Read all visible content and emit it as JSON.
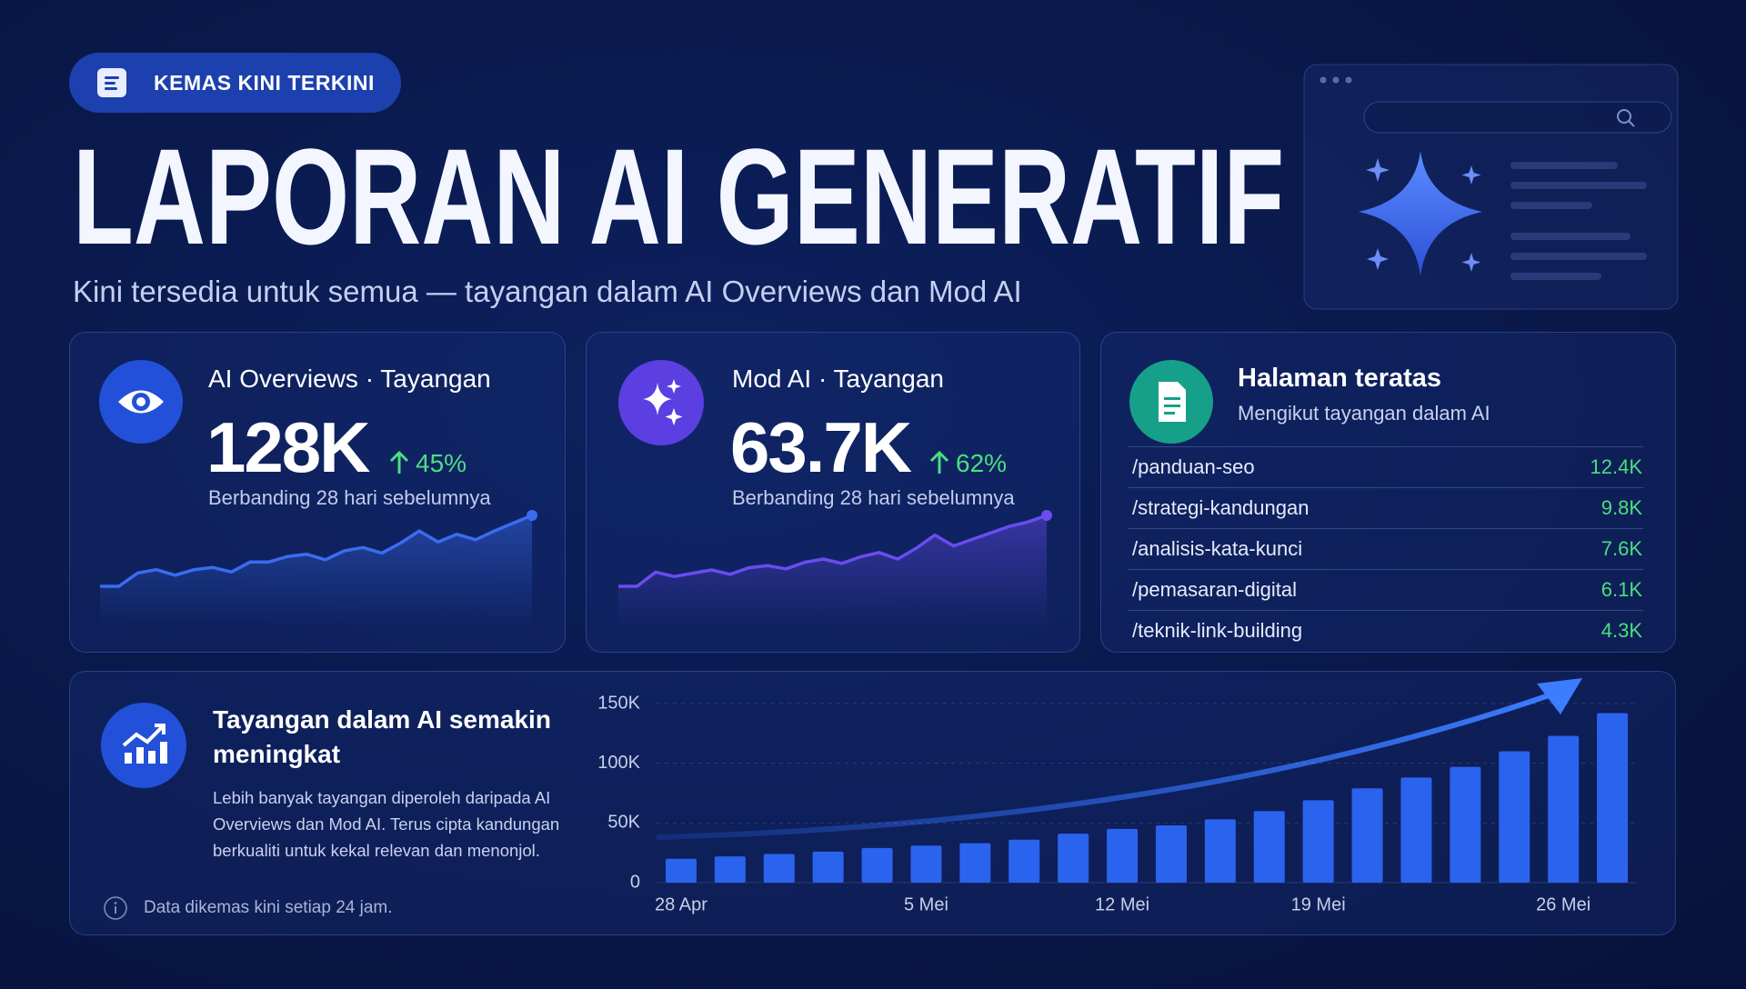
{
  "badge": "KEMAS KINI TERKINI",
  "title": "LAPORAN AI GENERATIF",
  "subtitle": "Kini tersedia untuk semua — tayangan dalam AI Overviews dan Mod AI",
  "metrics": [
    {
      "title": "AI Overviews · Tayangan",
      "value": "128K",
      "change": "45%",
      "note": "Berbanding 28 hari sebelumnya"
    },
    {
      "title": "Mod AI · Tayangan",
      "value": "63.7K",
      "change": "62%",
      "note": "Berbanding 28 hari sebelumnya"
    }
  ],
  "top_pages": {
    "title": "Halaman teratas",
    "subtitle": "Mengikut tayangan dalam AI",
    "rows": [
      [
        "/panduan-seo",
        "12.4K"
      ],
      [
        "/strategi-kandungan",
        "9.8K"
      ],
      [
        "/analisis-kata-kunci",
        "7.6K"
      ],
      [
        "/pemasaran-digital",
        "6.1K"
      ],
      [
        "/teknik-link-building",
        "4.3K"
      ]
    ]
  },
  "trend_panel": {
    "title": "Tayangan dalam AI semakin meningkat",
    "body": "Lebih banyak tayangan diperoleh daripada AI Overviews dan Mod AI. Terus cipta kandungan berkualiti untuk kekal relevan dan menonjol.",
    "footnote": "Data dikemas kini setiap 24 jam."
  },
  "chart_data": [
    {
      "type": "line",
      "color": "#3b6cf0",
      "values": [
        3,
        3,
        15,
        18,
        13,
        18,
        20,
        16,
        25,
        25,
        30,
        32,
        27,
        35,
        38,
        33,
        42,
        53,
        43,
        50,
        45,
        53,
        60,
        67
      ]
    },
    {
      "type": "line",
      "color": "#6a4cf0",
      "values": [
        3,
        3,
        16,
        12,
        15,
        18,
        14,
        20,
        22,
        19,
        25,
        28,
        24,
        30,
        34,
        28,
        38,
        50,
        40,
        46,
        52,
        58,
        62,
        68
      ]
    },
    {
      "type": "bar",
      "color": "#2a63ee",
      "categories": [
        "28 Apr",
        null,
        null,
        null,
        null,
        "5 Mei",
        null,
        null,
        null,
        "12 Mei",
        null,
        null,
        null,
        "19 Mei",
        null,
        null,
        null,
        null,
        "26 Mei",
        null
      ],
      "values": [
        20000,
        22000,
        24000,
        26000,
        29000,
        31000,
        33000,
        36000,
        41000,
        45000,
        48000,
        53000,
        60000,
        69000,
        79000,
        88000,
        97000,
        110000,
        123000,
        142000
      ],
      "ylim": [
        0,
        150000
      ],
      "yticks": [
        0,
        {
          "value": 50000,
          "label": "50K"
        },
        {
          "value": 100000,
          "label": "100K"
        },
        {
          "value": 150000,
          "label": "150K"
        }
      ],
      "grid": true
    }
  ]
}
